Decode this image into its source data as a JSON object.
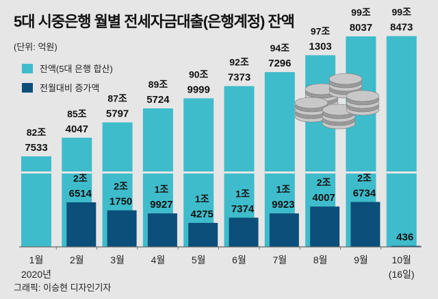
{
  "title": "5대 시중은행 월별 전세자금대출(은행계정) 잔액",
  "unit": "(단위: 억원)",
  "credit": "그래픽: 이승현 디자인기자",
  "legend": [
    {
      "label": "잔액(5대 은행 합산)",
      "color": "#3fbccb"
    },
    {
      "label": "전월대비 증가액",
      "color": "#0b4f7a"
    }
  ],
  "chart_data": {
    "type": "bar",
    "categories": [
      "1월",
      "2월",
      "3월",
      "4월",
      "5월",
      "6월",
      "7월",
      "8월",
      "9월",
      "10월"
    ],
    "category_sublabels": [
      "2020년",
      "",
      "",
      "",
      "",
      "",
      "",
      "",
      "",
      "(16일)"
    ],
    "series": [
      {
        "name": "잔액(5대 은행 합산)",
        "values": [
          827533,
          854047,
          875797,
          895724,
          909999,
          927373,
          947296,
          971303,
          998037,
          998473
        ],
        "labels": [
          [
            "82조",
            "7533"
          ],
          [
            "85조",
            "4047"
          ],
          [
            "87조",
            "5797"
          ],
          [
            "89조",
            "5724"
          ],
          [
            "90조",
            "9999"
          ],
          [
            "92조",
            "7373"
          ],
          [
            "94조",
            "7296"
          ],
          [
            "97조",
            "1303"
          ],
          [
            "99조",
            "8037"
          ],
          [
            "99조",
            "8473"
          ]
        ],
        "color": "#3fbccb"
      },
      {
        "name": "전월대비 증가액",
        "values": [
          null,
          26514,
          21750,
          19927,
          14275,
          17374,
          19923,
          24007,
          26734,
          436
        ],
        "labels": [
          null,
          [
            "2조",
            "6514"
          ],
          [
            "2조",
            "1750"
          ],
          [
            "1조",
            "9927"
          ],
          [
            "1조",
            "4275"
          ],
          [
            "1조",
            "7374"
          ],
          [
            "1조",
            "9923"
          ],
          [
            "2조",
            "4007"
          ],
          [
            "2조",
            "6734"
          ],
          [
            "",
            "436"
          ]
        ],
        "color": "#0b4f7a"
      }
    ],
    "axis_break": true,
    "grid": false
  }
}
